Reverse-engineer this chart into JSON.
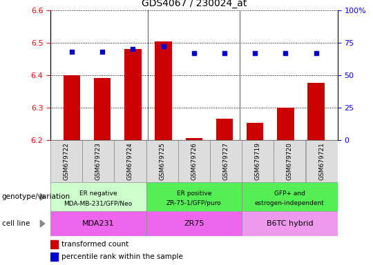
{
  "title": "GDS4067 / 230024_at",
  "samples": [
    "GSM679722",
    "GSM679723",
    "GSM679724",
    "GSM679725",
    "GSM679726",
    "GSM679727",
    "GSM679719",
    "GSM679720",
    "GSM679721"
  ],
  "bar_values": [
    6.4,
    6.39,
    6.48,
    6.503,
    6.205,
    6.265,
    6.252,
    6.3,
    6.375
  ],
  "bar_bottom": 6.2,
  "percentile_values": [
    68,
    68,
    70,
    72,
    67,
    67,
    67,
    67,
    67
  ],
  "ylim_left": [
    6.2,
    6.6
  ],
  "ylim_right": [
    0,
    100
  ],
  "yticks_left": [
    6.2,
    6.3,
    6.4,
    6.5,
    6.6
  ],
  "yticks_right": [
    0,
    25,
    50,
    75,
    100
  ],
  "ytick_right_labels": [
    "0",
    "25",
    "50",
    "75",
    "100%"
  ],
  "bar_color": "#cc0000",
  "dot_color": "#0000cc",
  "groups": [
    {
      "label": "ER negative\nMDA-MB-231/GFP/Neo",
      "start": 0,
      "end": 3,
      "color": "#ccffcc"
    },
    {
      "label": "ER positive\nZR-75-1/GFP/puro",
      "start": 3,
      "end": 6,
      "color": "#55ee55"
    },
    {
      "label": "GFP+ and\nestrogen-independent",
      "start": 6,
      "end": 9,
      "color": "#55ee55"
    }
  ],
  "cell_lines": [
    {
      "label": "MDA231",
      "start": 0,
      "end": 3,
      "color": "#ee66ee"
    },
    {
      "label": "ZR75",
      "start": 3,
      "end": 6,
      "color": "#ee66ee"
    },
    {
      "label": "B6TC hybrid",
      "start": 6,
      "end": 9,
      "color": "#ee99ee"
    }
  ],
  "genotype_label": "genotype/variation",
  "cellline_label": "cell line",
  "legend_bar": "transformed count",
  "legend_dot": "percentile rank within the sample",
  "bar_width": 0.55
}
